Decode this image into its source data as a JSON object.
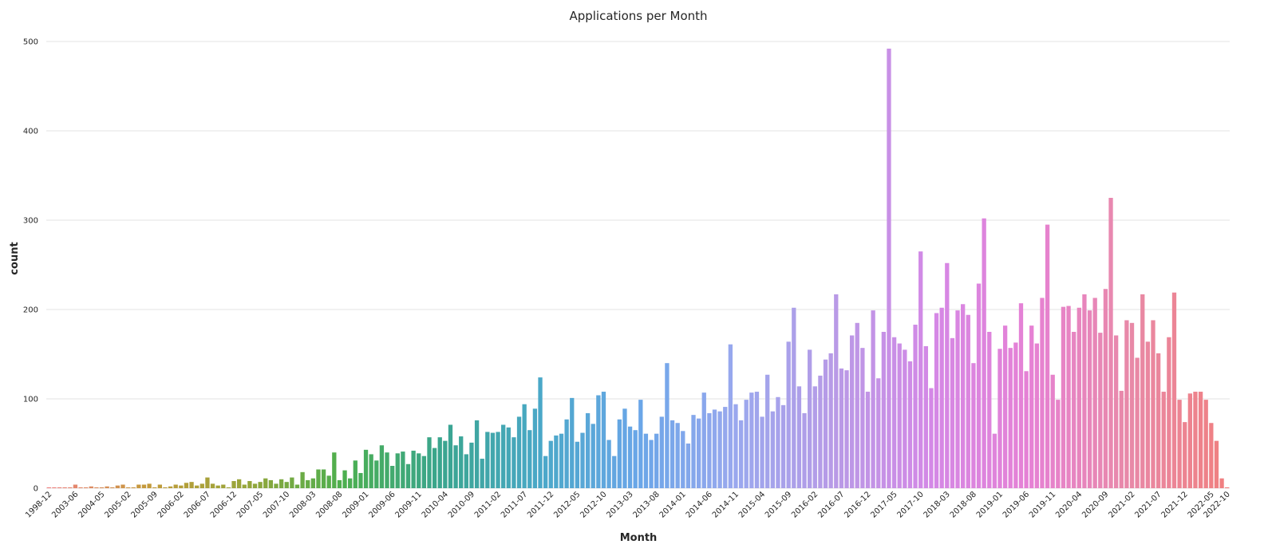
{
  "chart_data": {
    "type": "bar",
    "title": "Applications per Month",
    "xlabel": "Month",
    "ylabel": "count",
    "ylim": [
      0,
      500
    ],
    "yticks": [
      0,
      100,
      200,
      300,
      400,
      500
    ],
    "grid": "horizontal",
    "x_tick_labels": [
      "1998-12",
      "2003-06",
      "2004-05",
      "2005-02",
      "2005-09",
      "2006-02",
      "2006-07",
      "2006-12",
      "2007-05",
      "2007-10",
      "2008-03",
      "2008-08",
      "2009-01",
      "2009-06",
      "2009-11",
      "2010-04",
      "2010-09",
      "2011-02",
      "2011-07",
      "2011-12",
      "2012-05",
      "2012-10",
      "2013-03",
      "2013-08",
      "2014-01",
      "2014-06",
      "2014-11",
      "2015-04",
      "2015-09",
      "2016-02",
      "2016-07",
      "2016-12",
      "2017-05",
      "2017-10",
      "2018-03",
      "2018-08",
      "2019-01",
      "2019-06",
      "2019-11",
      "2020-04",
      "2020-09",
      "2021-02",
      "2021-07",
      "2021-12",
      "2022-05",
      "2022-10"
    ],
    "values": [
      1,
      1,
      1,
      1,
      1,
      4,
      1,
      1,
      2,
      1,
      1,
      2,
      1,
      3,
      4,
      1,
      1,
      4,
      4,
      5,
      1,
      4,
      1,
      2,
      4,
      3,
      6,
      7,
      3,
      5,
      12,
      5,
      3,
      4,
      1,
      8,
      10,
      4,
      8,
      5,
      7,
      11,
      9,
      5,
      10,
      7,
      12,
      4,
      18,
      9,
      11,
      21,
      21,
      14,
      40,
      9,
      20,
      11,
      31,
      17,
      43,
      38,
      31,
      48,
      40,
      25,
      39,
      41,
      27,
      42,
      39,
      36,
      57,
      45,
      57,
      53,
      71,
      48,
      58,
      38,
      51,
      76,
      33,
      63,
      62,
      63,
      71,
      68,
      57,
      80,
      94,
      65,
      89,
      124,
      36,
      53,
      59,
      61,
      77,
      101,
      52,
      62,
      84,
      72,
      104,
      108,
      54,
      36,
      77,
      89,
      69,
      65,
      99,
      61,
      54,
      61,
      80,
      140,
      76,
      73,
      64,
      50,
      82,
      78,
      107,
      84,
      88,
      86,
      91,
      161,
      94,
      76,
      99,
      107,
      108,
      80,
      127,
      86,
      102,
      93,
      164,
      202,
      114,
      84,
      155,
      114,
      126,
      144,
      151,
      217,
      134,
      132,
      171,
      185,
      157,
      108,
      199,
      123,
      175,
      492,
      169,
      162,
      155,
      142,
      183,
      265,
      159,
      112,
      196,
      202,
      252,
      168,
      199,
      206,
      194,
      140,
      229,
      302,
      175,
      61,
      156,
      182,
      157,
      163,
      207,
      131,
      182,
      162,
      213,
      295,
      127,
      99,
      203,
      204,
      175,
      202,
      217,
      199,
      213,
      174,
      223,
      325,
      171,
      109,
      188,
      185,
      146,
      217,
      164,
      188,
      151,
      108,
      169,
      219,
      99,
      74,
      106,
      108,
      108,
      99,
      73,
      53,
      11,
      1
    ]
  },
  "colors": {
    "gradient_stops": [
      "#f08080",
      "#c49a3a",
      "#97a63a",
      "#4caf4f",
      "#3aa58f",
      "#4aa8c8",
      "#6aa6e8",
      "#9aa8ee",
      "#b89ae6",
      "#d488e6",
      "#e681d4",
      "#e889a8",
      "#f08080"
    ],
    "grid": "#e3e3e3",
    "text": "#262626"
  }
}
